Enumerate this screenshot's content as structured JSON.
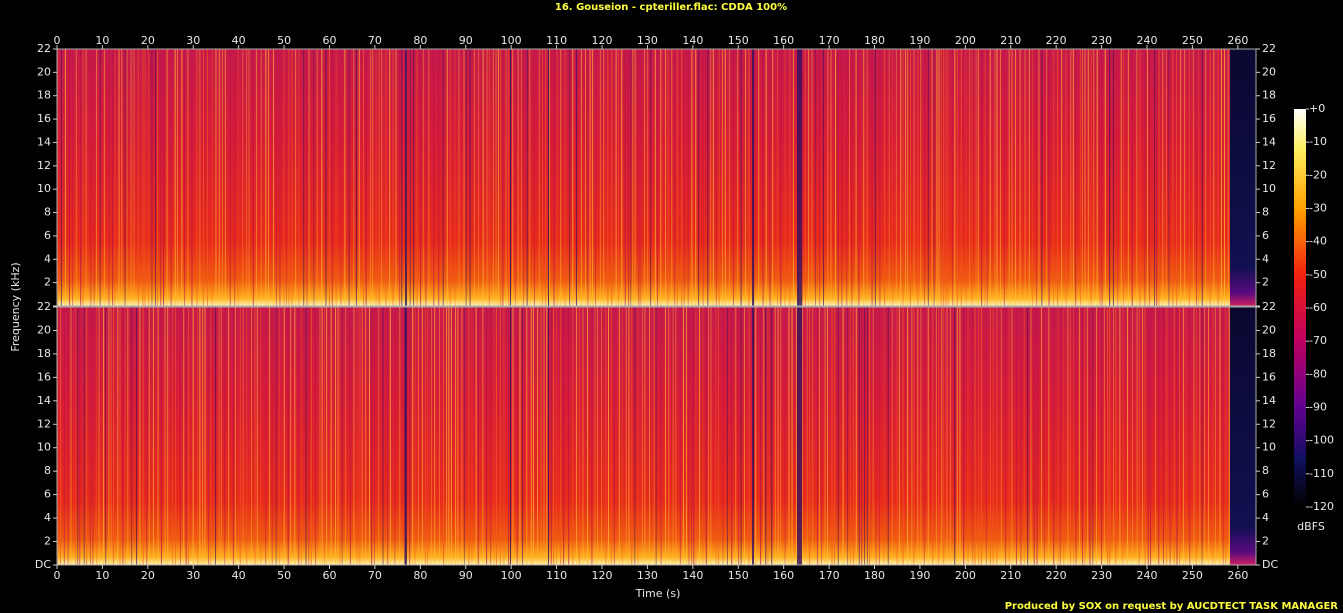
{
  "chart_data": {
    "type": "spectrogram",
    "title": "16. Gouseion - cpteriller.flac: CDDA 100%",
    "x_label": "Time (s)",
    "y_label": "Frequency (kHz)",
    "footer": "Produced by SOX on request by AUCDTECT TASK MANAGER",
    "xlim": [
      0,
      264
    ],
    "xticks": [
      0,
      10,
      20,
      30,
      40,
      50,
      60,
      70,
      80,
      90,
      100,
      110,
      120,
      130,
      140,
      150,
      160,
      170,
      180,
      190,
      200,
      210,
      220,
      230,
      240,
      250,
      260
    ],
    "ylim": [
      0,
      22
    ],
    "yticks": [
      {
        "value": 0,
        "label": "DC"
      },
      2,
      4,
      6,
      8,
      10,
      12,
      14,
      16,
      18,
      20,
      22
    ],
    "colorbar": {
      "label": "dBFS",
      "lim": [
        -120,
        0
      ],
      "ticks": [
        {
          "value": 0,
          "label": "+0"
        },
        -10,
        -20,
        -30,
        -40,
        -50,
        -60,
        -70,
        -80,
        -90,
        -100,
        -110,
        -120
      ]
    }
  }
}
